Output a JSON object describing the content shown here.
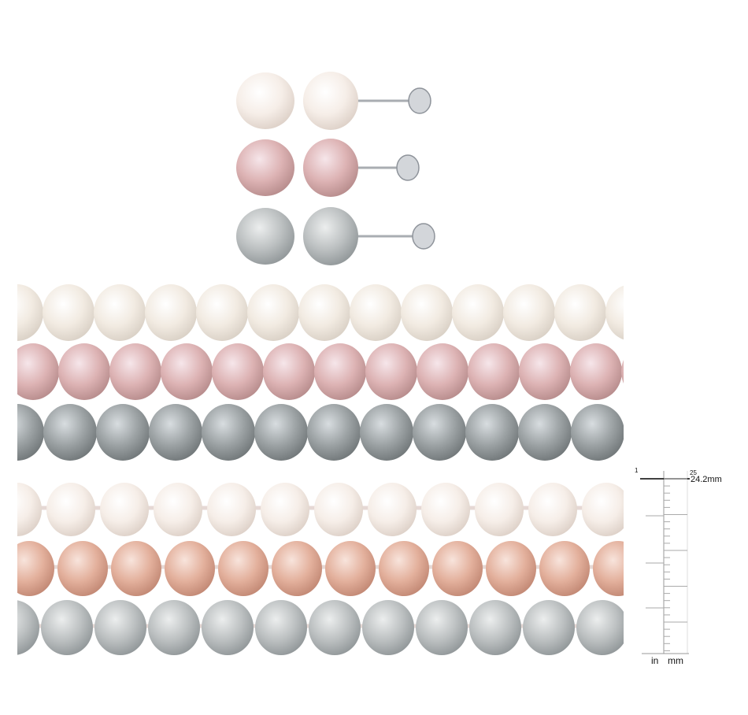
{
  "ruler": {
    "measurement": "24.2mm",
    "inch_label": "in",
    "mm_label": "mm",
    "inch_mark": "1",
    "mm_mark": "25"
  }
}
